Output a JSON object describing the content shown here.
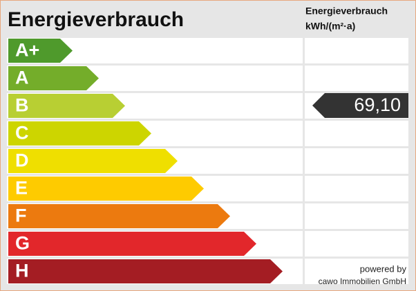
{
  "header": {
    "title": "Energieverbrauch",
    "unit_lines": [
      "Energieverbrauch",
      "kWh/(m²·a)"
    ]
  },
  "classes": [
    {
      "label": "A+",
      "color": "#4f9a2c"
    },
    {
      "label": "A",
      "color": "#74ad2a"
    },
    {
      "label": "B",
      "color": "#b8cf33"
    },
    {
      "label": "C",
      "color": "#cdd500"
    },
    {
      "label": "D",
      "color": "#efdf00"
    },
    {
      "label": "E",
      "color": "#fecb00"
    },
    {
      "label": "F",
      "color": "#ec7a0f"
    },
    {
      "label": "G",
      "color": "#e2272b"
    },
    {
      "label": "H",
      "color": "#a41d23"
    }
  ],
  "marker": {
    "value": "69,10"
  },
  "footer": {
    "lines": [
      "powered by",
      "cawo Immobilien GmbH"
    ]
  }
}
